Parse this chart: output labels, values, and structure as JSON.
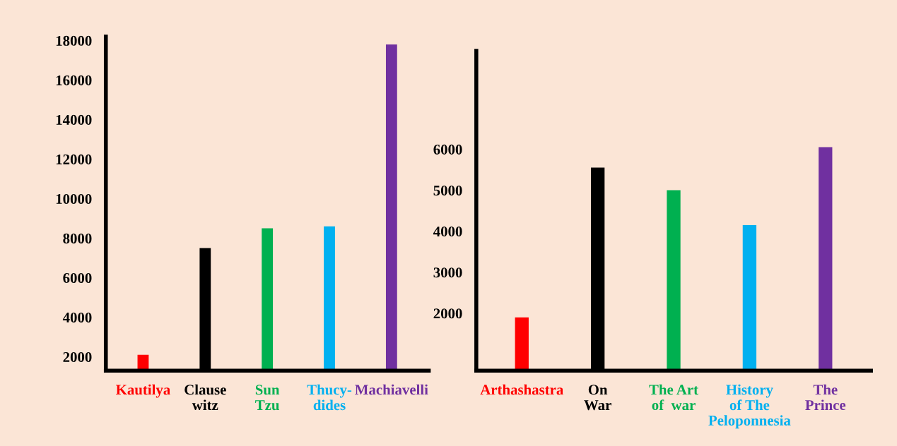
{
  "chart_data": [
    {
      "type": "bar",
      "categories": [
        "Kautilya",
        "Clause\nwitz",
        "Sun\nTzu",
        "Thucy-\ndides",
        "Machiavelli"
      ],
      "values": [
        2100,
        7500,
        8500,
        8600,
        17800
      ],
      "colors": [
        "#ff0000",
        "#000000",
        "#00b050",
        "#00b0f0",
        "#7030a0"
      ],
      "ylim": [
        1300,
        18200
      ],
      "yticks": [
        2000,
        4000,
        6000,
        8000,
        10000,
        12000,
        14000,
        16000,
        18000
      ],
      "grid": false,
      "legend": false
    },
    {
      "type": "bar",
      "categories": [
        "Arthashastra",
        "On\nWar",
        "The Art\nof  war",
        "History\nof The\nPeloponnesia",
        "The\nPrince"
      ],
      "values": [
        1900,
        5550,
        5000,
        4150,
        6050
      ],
      "colors": [
        "#ff0000",
        "#000000",
        "#00b050",
        "#00b0f0",
        "#7030a0"
      ],
      "ylim": [
        600,
        8400
      ],
      "yticks": [
        2000,
        3000,
        4000,
        5000,
        6000
      ],
      "grid": false,
      "legend": false
    }
  ]
}
